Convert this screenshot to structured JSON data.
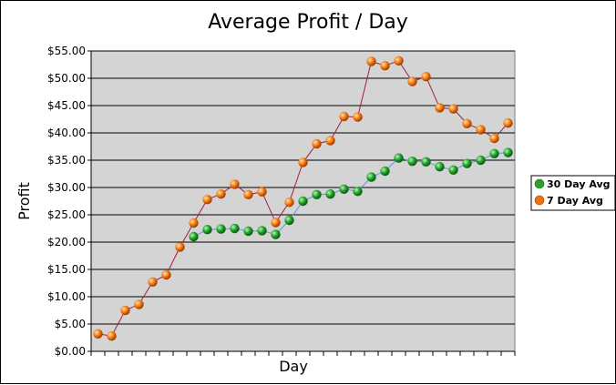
{
  "chart_data": {
    "type": "line",
    "title": "Average Profit / Day",
    "xlabel": "Day",
    "ylabel": "Profit",
    "ylim": [
      0,
      55
    ],
    "y_tick_step": 5,
    "y_tick_labels": [
      "$0.00",
      "$5.00",
      "$10.00",
      "$15.00",
      "$20.00",
      "$25.00",
      "$30.00",
      "$35.00",
      "$40.00",
      "$45.00",
      "$50.00",
      "$55.00"
    ],
    "num_days": 31,
    "grid": true,
    "legend": "right",
    "series": [
      {
        "name": "30 Day Avg",
        "color": "#2ca02c",
        "line_color": "#5b9bd5",
        "start_day": 8,
        "values": [
          21.0,
          22.3,
          22.4,
          22.5,
          22.0,
          22.1,
          21.4,
          24.0,
          27.5,
          28.7,
          28.8,
          29.7,
          29.3,
          31.9,
          33.0,
          35.4,
          34.8,
          34.7,
          33.8,
          33.2,
          34.4,
          35.0,
          36.2,
          36.4
        ]
      },
      {
        "name": "7 Day Avg",
        "color": "#f07010",
        "line_color": "#a0203a",
        "start_day": 1,
        "values": [
          3.2,
          2.8,
          7.5,
          8.6,
          12.7,
          14.0,
          19.1,
          23.5,
          27.8,
          28.8,
          30.6,
          28.7,
          29.2,
          23.6,
          27.3,
          34.6,
          38.0,
          38.6,
          43.0,
          42.9,
          53.1,
          52.3,
          53.2,
          49.4,
          50.3,
          44.6,
          44.4,
          41.7,
          40.6,
          39.0,
          41.8
        ]
      }
    ]
  }
}
